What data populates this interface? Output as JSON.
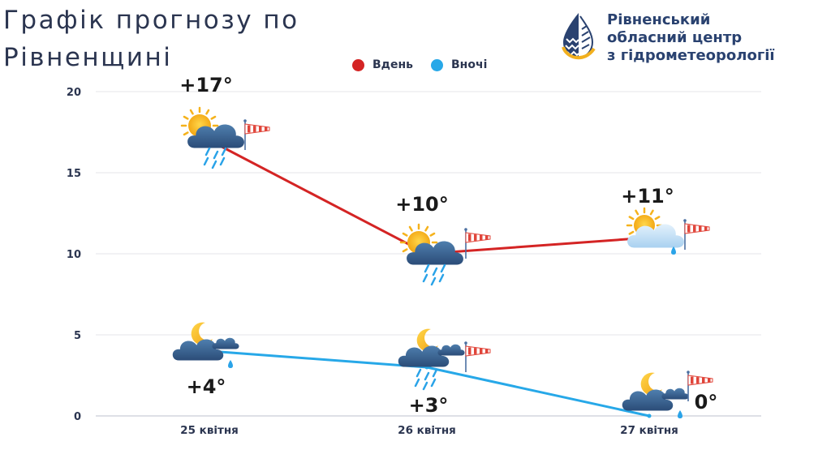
{
  "title_line1": "Графік прогнозу по",
  "title_line2": "Рівненщині",
  "org": {
    "line1": "Рівненський",
    "line2": "обласний центр",
    "line3": "з гідрометеорології"
  },
  "colors": {
    "day": "#d42424",
    "night": "#27a8e8",
    "text": "#2b3550",
    "brand": "#2a4270",
    "accent": "#f2b01e"
  },
  "chart_data": {
    "type": "line",
    "categories": [
      "25 квітня",
      "26 квітня",
      "27 квітня"
    ],
    "series": [
      {
        "name": "Вдень",
        "values": [
          17,
          10,
          11
        ],
        "labels": [
          "+17°",
          "+10°",
          "+11°"
        ],
        "icons": [
          "sun-cloud-rain-icon",
          "sun-cloud-rain-icon",
          "sun-cloud-drizzle-icon"
        ]
      },
      {
        "name": "Вночі",
        "values": [
          4,
          3,
          0
        ],
        "labels": [
          "+4°",
          "+3°",
          "0°"
        ],
        "icons": [
          "moon-cloud-drizzle-icon",
          "moon-cloud-rain-icon",
          "moon-cloud-drizzle-icon"
        ]
      }
    ],
    "ylim": [
      0,
      20
    ],
    "yticks": [
      0,
      5,
      10,
      15,
      20
    ],
    "grid": true,
    "legend": "top-center"
  }
}
